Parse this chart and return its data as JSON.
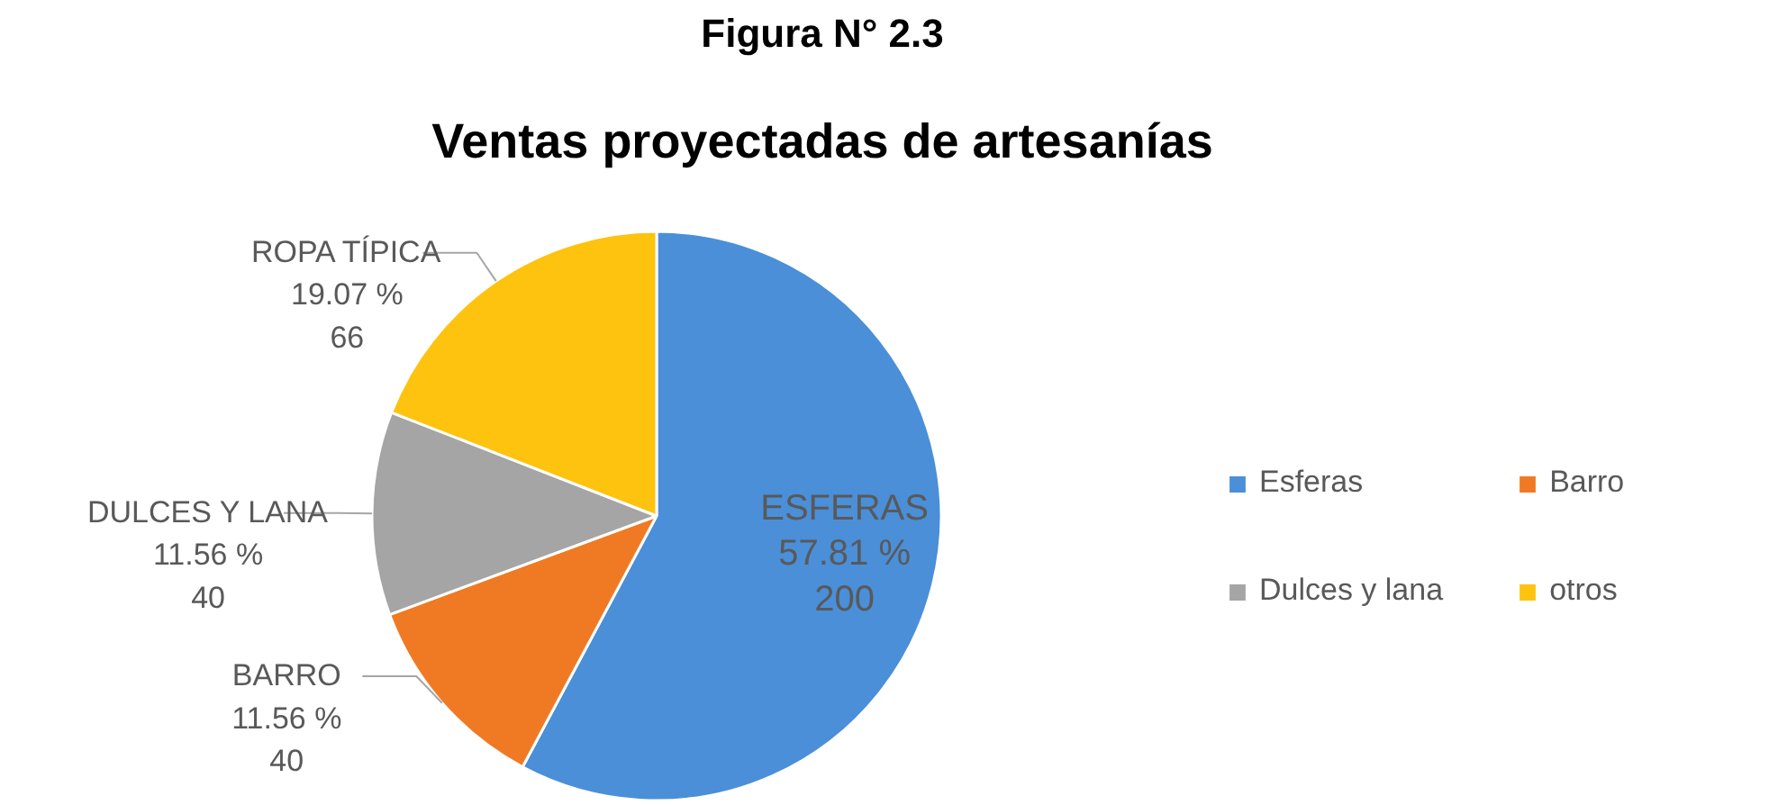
{
  "chart_data": {
    "type": "pie",
    "title": "Figura N° 2.3",
    "subtitle": "Ventas proyectadas de artesanías",
    "categories": [
      "Esferas",
      "Barro",
      "Dulces y lana",
      "otros"
    ],
    "values": [
      200,
      40,
      40,
      66
    ],
    "colors": [
      "#4a8fd8",
      "#f07a24",
      "#a5a5a5",
      "#fdc30f"
    ],
    "value_labels": [
      "ESFERAS\n57.81 %\n200",
      "BARRO\n11.56 %\n40",
      "DULCES Y LANA\n11.56 %\n40",
      "ROPA TÍPICA\n19.07 %\n66"
    ],
    "legend": "right"
  }
}
